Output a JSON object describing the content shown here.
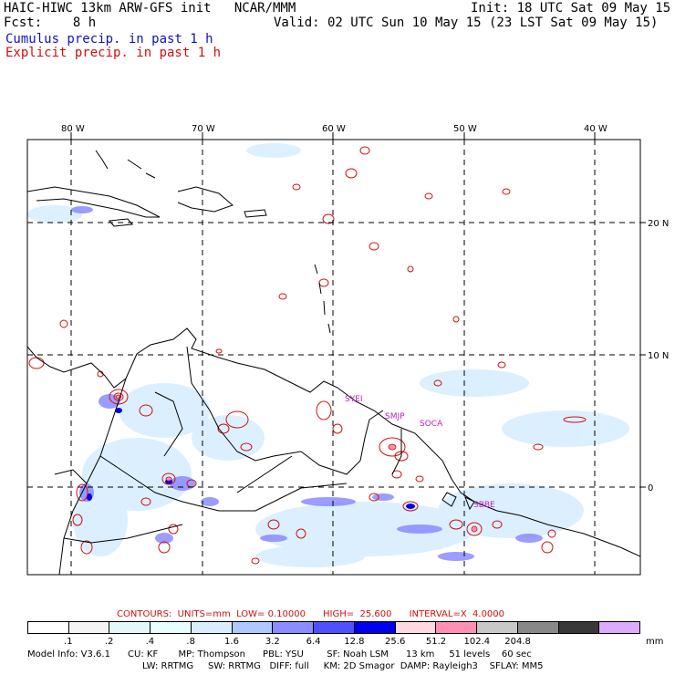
{
  "header": {
    "model_title": "HAIC-HIWC 13km ARW-GFS init   NCAR/MMM",
    "init_line": "Init: 18 UTC Sat 09 May 15",
    "forecast_line": "Fcst:    8 h",
    "valid_line": "Valid: 02 UTC Sun 10 May 15 (23 LST Sat 09 May 15)",
    "field_cumulus": "Cumulus precip. in past 1 h",
    "field_explicit": "Explicit precip. in past 1 h"
  },
  "map": {
    "lon_labels": [
      "80 W",
      "70 W",
      "60 W",
      "50 W",
      "40 W"
    ],
    "lat_labels": [
      "20 N",
      "10 N",
      "0"
    ],
    "stations": [
      "SYEI",
      "SMJP",
      "SOCA",
      "SBBE"
    ]
  },
  "contours": {
    "text": "CONTOURS:  UNITS=mm  LOW= 0.10000      HIGH=  25.600      INTERVAL=X  4.0000"
  },
  "colorbar": {
    "colors": [
      "#ffffff",
      "#f4f4f4",
      "#e2f8fa",
      "#e8ffff",
      "#d8eeff",
      "#b0c8ff",
      "#8a8cff",
      "#5050ff",
      "#0000ee",
      "#ffd8e2",
      "#ff90b4",
      "#c8c8c8",
      "#888888",
      "#383838",
      "#dcaaff"
    ],
    "labels": [
      ".1",
      ".2",
      ".4",
      ".8",
      "1.6",
      "3.2",
      "6.4",
      "12.8",
      "25.6",
      "51.2",
      "102.4",
      "204.8"
    ],
    "units": "mm"
  },
  "model_info": {
    "line1": "Model Info: V3.6.1      CU: KF       MP: Thompson      PBL: YSU        SF: Noah LSM      13 km     51 levels    60 sec",
    "line2": "LW: RRTMG     SW: RRTMG   DIFF: full     KM: 2D Smagor  DAMP: Rayleigh3    SFLAY: MM5"
  },
  "colors": {
    "cumulus": "#1010c8",
    "explicit": "#d01010",
    "station": "#c020c0"
  }
}
